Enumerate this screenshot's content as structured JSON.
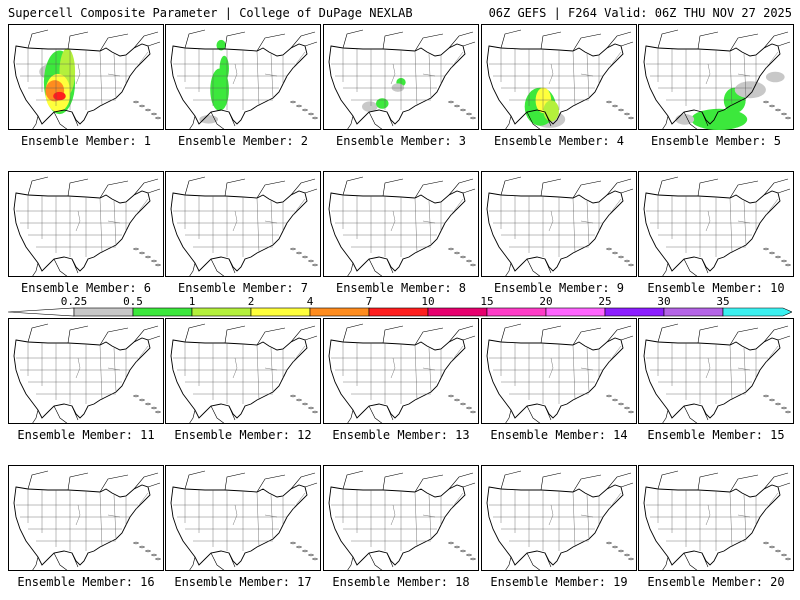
{
  "header": {
    "left": "Supercell Composite Parameter | College of DuPage NEXLAB",
    "right": "06Z GEFS | F264 Valid: 06Z THU NOV 27 2025"
  },
  "member_label_prefix": "Ensemble Member: ",
  "colorbar": {
    "labels": [
      "0.25",
      "0.5",
      "1",
      "2",
      "4",
      "7",
      "10",
      "15",
      "20",
      "25",
      "30",
      "35"
    ],
    "colors": [
      "#c8c8c8",
      "#3ce83c",
      "#b4f03c",
      "#ffff3c",
      "#ff8c1e",
      "#ff1e1e",
      "#e6006e",
      "#ff3cc8",
      "#ff64ff",
      "#8c1eff",
      "#b464e6",
      "#3cf0f0"
    ]
  },
  "members": [
    {
      "id": 1,
      "blobs": [
        [
          "#c8c8c8",
          0.3,
          0.45,
          0.1,
          0.08
        ],
        [
          "#3ce83c",
          0.33,
          0.55,
          0.1,
          0.3
        ],
        [
          "#b4f03c",
          0.38,
          0.45,
          0.05,
          0.22
        ],
        [
          "#ffff3c",
          0.32,
          0.65,
          0.08,
          0.18
        ],
        [
          "#ff8c1e",
          0.3,
          0.63,
          0.06,
          0.1
        ],
        [
          "#ff1e1e",
          0.33,
          0.68,
          0.04,
          0.04
        ]
      ]
    },
    {
      "id": 2,
      "blobs": [
        [
          "#3ce83c",
          0.35,
          0.62,
          0.06,
          0.2
        ],
        [
          "#3ce83c",
          0.38,
          0.42,
          0.03,
          0.12
        ],
        [
          "#c8c8c8",
          0.28,
          0.9,
          0.06,
          0.04
        ],
        [
          "#3ce83c",
          0.36,
          0.2,
          0.03,
          0.05
        ]
      ]
    },
    {
      "id": 3,
      "blobs": [
        [
          "#c8c8c8",
          0.3,
          0.78,
          0.05,
          0.05
        ],
        [
          "#3ce83c",
          0.38,
          0.75,
          0.04,
          0.05
        ],
        [
          "#3ce83c",
          0.5,
          0.55,
          0.03,
          0.04
        ],
        [
          "#c8c8c8",
          0.48,
          0.6,
          0.04,
          0.04
        ]
      ]
    },
    {
      "id": 4,
      "blobs": [
        [
          "#c8c8c8",
          0.44,
          0.9,
          0.1,
          0.08
        ],
        [
          "#3ce83c",
          0.38,
          0.78,
          0.1,
          0.18
        ],
        [
          "#ffff3c",
          0.4,
          0.72,
          0.05,
          0.12
        ],
        [
          "#b4f03c",
          0.45,
          0.82,
          0.05,
          0.1
        ]
      ]
    },
    {
      "id": 5,
      "blobs": [
        [
          "#3ce83c",
          0.52,
          0.9,
          0.18,
          0.1
        ],
        [
          "#3ce83c",
          0.62,
          0.72,
          0.07,
          0.12
        ],
        [
          "#c8c8c8",
          0.72,
          0.62,
          0.1,
          0.08
        ],
        [
          "#c8c8c8",
          0.88,
          0.5,
          0.06,
          0.05
        ],
        [
          "#c8c8c8",
          0.3,
          0.9,
          0.06,
          0.05
        ]
      ]
    }
  ]
}
